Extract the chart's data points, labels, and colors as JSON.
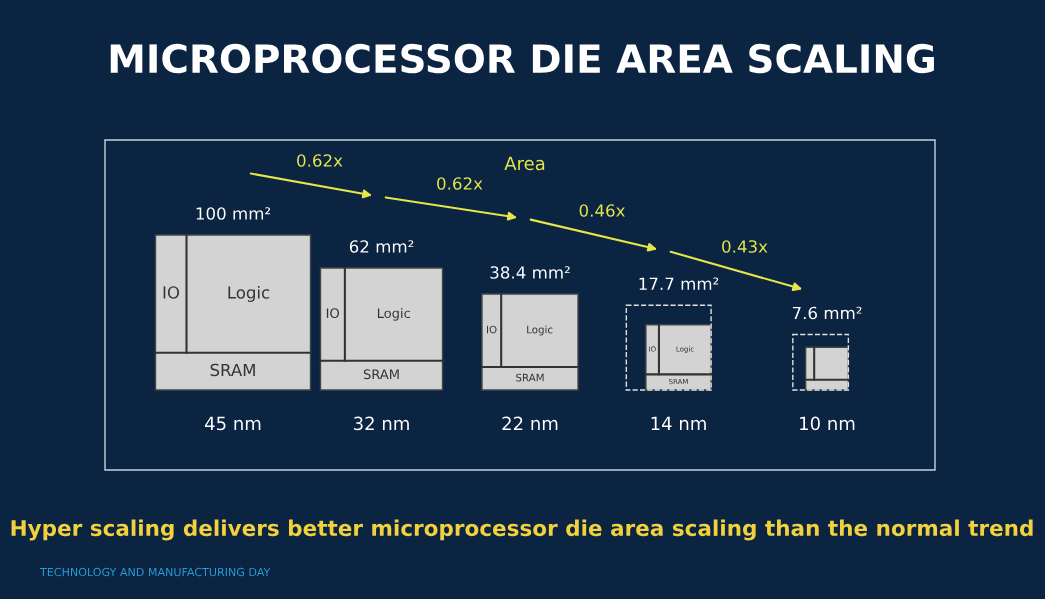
{
  "chart_data": {
    "type": "other",
    "title": "MICROPROCESSOR DIE AREA SCALING",
    "categories": [
      "45 nm",
      "32 nm",
      "22 nm",
      "14 nm",
      "10 nm"
    ],
    "values": [
      100,
      62,
      38.4,
      17.7,
      7.6
    ],
    "value_labels": [
      "100 mm²",
      "62 mm²",
      "38.4 mm²",
      "17.7 mm²",
      "7.6 mm²"
    ],
    "color": "#d3d3d3",
    "annotations": [
      "Area",
      "0.62x",
      "0.62x",
      "0.46x",
      "0.43x",
      "IO",
      "Logic",
      "SRAM",
      "Hyper scaling delivers better microprocessor die area scaling than the normal trend",
      "TECHNOLOGY AND MANUFACTURING DAY"
    ]
  }
}
